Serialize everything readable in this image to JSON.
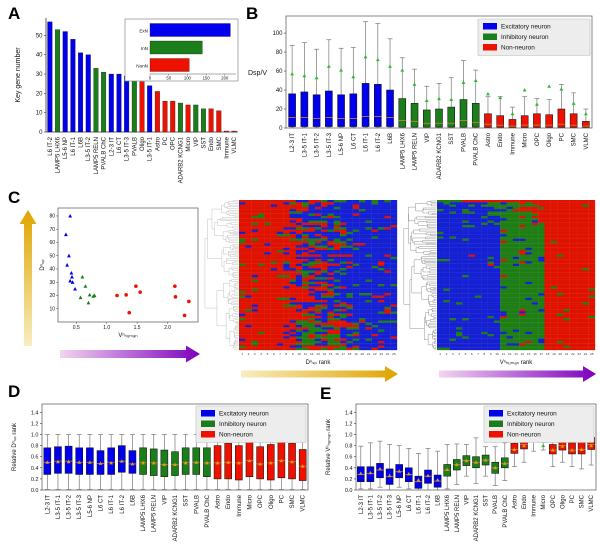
{
  "figure": {
    "panels": {
      "A": "A",
      "B": "B",
      "C": "C",
      "D": "D",
      "E": "E"
    }
  },
  "colors": {
    "excitatory": "#0000ee",
    "inhibitory": "#1b7e1b",
    "non_neuron": "#ee1100",
    "median_line": "#d9822b",
    "mean_marker_b": "#2eb82e",
    "mean_marker_de": "#d4a017",
    "heat_red": "#df1200",
    "heat_green": "#1e7d14",
    "heat_blue": "#1420d2",
    "arrow_gold_light": "#f8edc0",
    "arrow_gold_dark": "#dfa400",
    "arrow_purple_light": "#f3d4f1",
    "arrow_purple_dark": "#7d00bd"
  },
  "legend": [
    "Excitatory neuron",
    "Inhibitory neuron",
    "Non-neuron"
  ],
  "chart_data": {
    "A": {
      "type": "bar",
      "ylabel": "Key gene number",
      "ylim": [
        0,
        59
      ],
      "yticks": [
        0,
        10,
        20,
        30,
        40,
        50
      ],
      "categories": [
        "L6 IT-2",
        "LAMP5 LHX6",
        "L5-6 NP",
        "L6 IT-1",
        "L6B",
        "L3-5 IT-2",
        "LAMP5 RELN",
        "PVALB ChC",
        "L2-3 IT",
        "L6 CT",
        "L3-5 IT-3",
        "PVALB",
        "Oligo",
        "L3-5 IT-1",
        "Astro",
        "PC",
        "OPC",
        "ADARB2 KCNG1",
        "Micro",
        "VIP",
        "SST",
        "Endo",
        "SMC",
        "Immune",
        "VLMC"
      ],
      "values": [
        57,
        53,
        52,
        48,
        41,
        40,
        33,
        31,
        30,
        30,
        29,
        28,
        26,
        24,
        21,
        16,
        16,
        15,
        14,
        14,
        12,
        12,
        11,
        0.5,
        0.5
      ],
      "groups": [
        "ExN",
        "InN",
        "ExN",
        "ExN",
        "ExN",
        "ExN",
        "InN",
        "InN",
        "ExN",
        "ExN",
        "ExN",
        "InN",
        "NonN",
        "ExN",
        "NonN",
        "NonN",
        "NonN",
        "InN",
        "NonN",
        "InN",
        "InN",
        "NonN",
        "NonN",
        "NonN",
        "NonN"
      ],
      "inset": {
        "categories": [
          "ExN",
          "InN",
          "NonN"
        ],
        "values": [
          215,
          140,
          105
        ],
        "xlim": [
          0,
          230
        ],
        "xticks": [
          0,
          50,
          100,
          150,
          200
        ]
      }
    },
    "B": {
      "type": "box",
      "ylabel": "Dsp/V",
      "ylim": [
        0,
        118
      ],
      "yticks": [
        0,
        20,
        40,
        60,
        80,
        100
      ],
      "legend": [
        "Excitatory neuron",
        "Inhibitory neuron",
        "Non-neuron"
      ],
      "categories": [
        "L2-3 IT",
        "L3-5 IT-1",
        "L3-5 IT-2",
        "L3-5 IT-3",
        "L5-6 NP",
        "L6 CT",
        "L6 IT-1",
        "L6 IT-2",
        "L6B",
        "LAMP5 LHX6",
        "LAMP5 RELN",
        "VIP",
        "ADARB2 KCNG1",
        "SST",
        "PVALB",
        "PVALB ChC",
        "Astro",
        "Endo",
        "Immune",
        "Micro",
        "OPC",
        "Oligo",
        "PC",
        "SMC",
        "VLMC"
      ],
      "groups": [
        "ExN",
        "ExN",
        "ExN",
        "ExN",
        "ExN",
        "ExN",
        "ExN",
        "ExN",
        "ExN",
        "InN",
        "InN",
        "InN",
        "InN",
        "InN",
        "InN",
        "InN",
        "NonN",
        "NonN",
        "NonN",
        "NonN",
        "NonN",
        "NonN",
        "NonN",
        "NonN",
        "NonN"
      ],
      "boxes": [
        [
          0.5,
          1.5,
          11,
          36,
          87,
          57
        ],
        [
          0.5,
          1.5,
          11,
          38,
          90,
          55
        ],
        [
          0.5,
          1.5,
          10,
          35,
          83,
          53
        ],
        [
          0.5,
          1.5,
          11,
          39,
          93,
          65
        ],
        [
          0.5,
          1.5,
          10,
          35,
          84,
          61
        ],
        [
          0.5,
          1.5,
          10,
          36,
          85,
          54
        ],
        [
          0.5,
          1.5,
          12,
          47,
          112,
          75
        ],
        [
          0.5,
          1.5,
          12,
          46,
          110,
          72
        ],
        [
          0.5,
          1.5,
          11,
          40,
          94,
          65
        ],
        [
          0.5,
          1.0,
          8,
          31,
          74,
          61
        ],
        [
          0.5,
          1.0,
          7,
          26,
          62,
          46
        ],
        [
          0.5,
          1.0,
          5,
          19,
          44,
          29
        ],
        [
          0.5,
          1.0,
          5,
          20,
          47,
          31
        ],
        [
          0.5,
          1.0,
          5,
          22,
          53,
          30
        ],
        [
          0.5,
          1.0,
          8,
          30,
          71,
          48
        ],
        [
          0.5,
          1.0,
          6,
          26,
          61,
          50
        ],
        [
          0.3,
          0.8,
          4,
          15,
          33,
          36
        ],
        [
          0.3,
          0.8,
          3,
          13,
          33,
          32
        ],
        [
          0.3,
          0.8,
          2,
          9,
          22,
          15
        ],
        [
          0.3,
          0.8,
          3,
          13,
          33,
          40
        ],
        [
          0.3,
          0.8,
          3,
          15,
          31,
          25
        ],
        [
          0.3,
          0.8,
          3,
          14,
          30,
          44
        ],
        [
          0.3,
          0.8,
          4,
          20,
          46,
          41
        ],
        [
          0.3,
          0.8,
          3,
          15,
          37,
          26
        ],
        [
          0.3,
          0.8,
          2,
          7,
          20,
          15
        ]
      ]
    },
    "C_scatter": {
      "type": "scatter",
      "xlabel": "Vⁿₕᵤₘₐₙ",
      "ylabel": "Dⁿₛₚ",
      "xlim": [
        0.2,
        2.5
      ],
      "ylim": [
        0,
        86
      ],
      "xticks": [
        0.5,
        1.0,
        1.5,
        2.0
      ],
      "yticks": [
        10,
        20,
        30,
        40,
        50,
        60,
        70,
        80
      ],
      "series": [
        {
          "name": "ExN",
          "color": "#0000ee",
          "marker": "triangle",
          "points": [
            [
              0.4,
              80
            ],
            [
              0.33,
              66
            ],
            [
              0.38,
              50
            ],
            [
              0.35,
              43
            ],
            [
              0.42,
              37
            ],
            [
              0.43,
              34
            ],
            [
              0.4,
              31
            ],
            [
              0.44,
              30
            ],
            [
              0.48,
              25
            ]
          ]
        },
        {
          "name": "InN",
          "color": "#1b7e1b",
          "marker": "triangle",
          "points": [
            [
              0.6,
              34
            ],
            [
              0.65,
              27
            ],
            [
              0.57,
              18.5
            ],
            [
              0.72,
              20.5
            ],
            [
              0.8,
              20
            ],
            [
              0.78,
              19.5
            ],
            [
              0.7,
              14.5
            ]
          ]
        },
        {
          "name": "NonN",
          "color": "#ee1100",
          "marker": "circle",
          "points": [
            [
              1.17,
              20
            ],
            [
              1.32,
              20.5
            ],
            [
              1.48,
              27
            ],
            [
              1.55,
              22.5
            ],
            [
              1.37,
              7
            ],
            [
              2.12,
              27
            ],
            [
              2.13,
              19
            ],
            [
              2.35,
              15.5
            ],
            [
              2.28,
              5
            ]
          ]
        }
      ],
      "arrows": {
        "y_axis": "gold-up",
        "x_axis": "purple-right"
      }
    },
    "C_heatmap_dsp": {
      "type": "heatmap",
      "xlabel": "Dⁿₛₚ rank",
      "cols": 25,
      "rows": 66,
      "xticks_range": [
        1,
        25
      ],
      "pattern": "dsp",
      "seed": 42,
      "arrow": "gold",
      "dendrogram": true,
      "dendro_color": "#a8a8a8"
    },
    "C_heatmap_v": {
      "type": "heatmap",
      "xlabel": "Vⁿₕᵤₘₐₙ rank",
      "cols": 25,
      "rows": 66,
      "xticks_range": [
        1,
        25
      ],
      "pattern": "v",
      "seed": 7,
      "arrow": "purple",
      "dendrogram": true,
      "dendro_color": "#666666"
    },
    "D": {
      "type": "box",
      "ylabel": "Relative Dⁿₛₚ rank",
      "ylim": [
        0,
        1.55
      ],
      "yticks": [
        0.0,
        0.2,
        0.4,
        0.6,
        0.8,
        1.0,
        1.2,
        1.4
      ],
      "legend": [
        "Excitatory neuron",
        "Inhibitory neuron",
        "Non-neuron"
      ],
      "categories": [
        "L2-3 IT",
        "L3-5 IT-1",
        "L3-5 IT-2",
        "L3-5 IT-3",
        "L5-6 NP",
        "L6 CT",
        "L6 IT-1",
        "L6 IT-2",
        "L6B",
        "LAMP5 LHX6",
        "LAMP5 RELN",
        "VIP",
        "ADARB2 KCNG1",
        "SST",
        "PVALB",
        "PVALB ChC",
        "Astro",
        "Endo",
        "Immune",
        "Micro",
        "OPC",
        "Oligo",
        "PC",
        "SMC",
        "VLMC"
      ],
      "groups": [
        "ExN",
        "ExN",
        "ExN",
        "ExN",
        "ExN",
        "ExN",
        "ExN",
        "ExN",
        "ExN",
        "InN",
        "InN",
        "InN",
        "InN",
        "InN",
        "InN",
        "InN",
        "NonN",
        "NonN",
        "NonN",
        "NonN",
        "NonN",
        "NonN",
        "NonN",
        "NonN",
        "NonN"
      ],
      "boxes": [
        [
          0.01,
          0.28,
          0.5,
          0.76,
          1.0,
          0.5
        ],
        [
          0.01,
          0.3,
          0.52,
          0.78,
          1.0,
          0.51
        ],
        [
          0.01,
          0.3,
          0.52,
          0.79,
          1.0,
          0.51
        ],
        [
          0.01,
          0.28,
          0.5,
          0.76,
          1.0,
          0.5
        ],
        [
          0.01,
          0.28,
          0.5,
          0.76,
          1.0,
          0.5
        ],
        [
          0.01,
          0.28,
          0.48,
          0.71,
          1.0,
          0.48
        ],
        [
          0.01,
          0.28,
          0.5,
          0.76,
          1.0,
          0.49
        ],
        [
          0.01,
          0.32,
          0.52,
          0.8,
          1.0,
          0.52
        ],
        [
          0.01,
          0.3,
          0.47,
          0.71,
          1.0,
          0.47
        ],
        [
          0.01,
          0.28,
          0.5,
          0.76,
          1.0,
          0.49
        ],
        [
          0.01,
          0.26,
          0.49,
          0.74,
          1.0,
          0.49
        ],
        [
          0.01,
          0.24,
          0.46,
          0.72,
          1.0,
          0.46
        ],
        [
          0.01,
          0.26,
          0.46,
          0.69,
          1.0,
          0.46
        ],
        [
          0.01,
          0.28,
          0.5,
          0.76,
          1.0,
          0.49
        ],
        [
          0.01,
          0.28,
          0.5,
          0.76,
          1.0,
          0.5
        ],
        [
          0.01,
          0.24,
          0.49,
          0.76,
          1.0,
          0.49
        ],
        [
          0.01,
          0.2,
          0.49,
          0.8,
          1.0,
          0.49
        ],
        [
          0.01,
          0.2,
          0.5,
          0.84,
          1.0,
          0.5
        ],
        [
          0.01,
          0.18,
          0.49,
          0.8,
          1.0,
          0.49
        ],
        [
          0.01,
          0.24,
          0.53,
          0.88,
          1.0,
          0.53
        ],
        [
          0.01,
          0.2,
          0.47,
          0.78,
          1.0,
          0.47
        ],
        [
          0.01,
          0.18,
          0.49,
          0.82,
          1.0,
          0.49
        ],
        [
          0.01,
          0.22,
          0.53,
          0.86,
          1.0,
          0.53
        ],
        [
          0.01,
          0.2,
          0.51,
          0.84,
          1.0,
          0.51
        ],
        [
          0.01,
          0.17,
          0.43,
          0.73,
          1.0,
          0.43
        ]
      ]
    },
    "E": {
      "type": "box",
      "ylabel": "Relative Vⁿₕᵤₘₐₙ rank",
      "ylim": [
        0,
        1.55
      ],
      "yticks": [
        0.0,
        0.2,
        0.4,
        0.6,
        0.8,
        1.0,
        1.2,
        1.4
      ],
      "legend": [
        "Excitatory neuron",
        "Inhibitory neuron",
        "Non-neuron"
      ],
      "categories": [
        "L2-3 IT",
        "L3-5 IT-1",
        "L3-5 IT-2",
        "L3-5 IT-3",
        "L5-6 NP",
        "L6 CT",
        "L6 IT-1",
        "L6 IT-2",
        "L6B",
        "LAMP5 LHX6",
        "LAMP5 RELN",
        "VIP",
        "ADARB2 KCNG1",
        "SST",
        "PVALB",
        "PVALB ChC",
        "Astro",
        "Endo",
        "Immune",
        "Micro",
        "OPC",
        "Oligo",
        "PC",
        "SMC",
        "VLMC"
      ],
      "groups": [
        "ExN",
        "ExN",
        "ExN",
        "ExN",
        "ExN",
        "ExN",
        "ExN",
        "ExN",
        "ExN",
        "InN",
        "InN",
        "InN",
        "InN",
        "InN",
        "InN",
        "InN",
        "NonN",
        "NonN",
        "NonN",
        "NonN",
        "NonN",
        "NonN",
        "NonN",
        "NonN",
        "NonN"
      ],
      "boxes": [
        [
          0.02,
          0.15,
          0.28,
          0.42,
          0.79,
          0.3
        ],
        [
          0.02,
          0.15,
          0.3,
          0.42,
          0.85,
          0.31
        ],
        [
          0.05,
          0.22,
          0.36,
          0.48,
          0.88,
          0.38
        ],
        [
          0.0,
          0.1,
          0.24,
          0.38,
          0.82,
          0.26
        ],
        [
          0.05,
          0.22,
          0.33,
          0.46,
          0.8,
          0.34
        ],
        [
          0.02,
          0.15,
          0.28,
          0.4,
          0.75,
          0.29
        ],
        [
          0.0,
          0.03,
          0.15,
          0.25,
          0.66,
          0.18
        ],
        [
          0.0,
          0.12,
          0.25,
          0.36,
          0.75,
          0.26
        ],
        [
          0.0,
          0.05,
          0.16,
          0.27,
          0.7,
          0.18
        ],
        [
          0.02,
          0.25,
          0.36,
          0.46,
          0.82,
          0.37
        ],
        [
          0.1,
          0.36,
          0.46,
          0.55,
          0.83,
          0.46
        ],
        [
          0.25,
          0.44,
          0.53,
          0.62,
          0.82,
          0.53
        ],
        [
          0.12,
          0.4,
          0.5,
          0.6,
          0.94,
          0.5
        ],
        [
          0.25,
          0.45,
          0.54,
          0.63,
          0.78,
          0.54
        ],
        [
          0.08,
          0.3,
          0.4,
          0.5,
          0.78,
          0.4
        ],
        [
          0.17,
          0.4,
          0.48,
          0.58,
          0.85,
          0.48
        ],
        [
          0.42,
          0.66,
          0.73,
          0.84,
          1.0,
          0.73
        ],
        [
          0.5,
          0.74,
          0.82,
          0.9,
          1.02,
          0.8
        ],
        [
          0.7,
          0.87,
          0.93,
          1.0,
          1.05,
          0.92
        ],
        [
          0.72,
          0.86,
          0.93,
          1.0,
          1.05,
          0.8
        ],
        [
          0.42,
          0.65,
          0.72,
          0.82,
          0.95,
          0.72
        ],
        [
          0.5,
          0.72,
          0.8,
          0.92,
          1.0,
          0.79
        ],
        [
          0.42,
          0.65,
          0.72,
          0.85,
          0.98,
          0.72
        ],
        [
          0.38,
          0.65,
          0.73,
          0.88,
          1.0,
          0.73
        ],
        [
          0.45,
          0.73,
          0.82,
          0.95,
          1.02,
          0.8
        ]
      ],
      "mean_color_overrides": {
        "19": "#2eb82e"
      }
    }
  }
}
